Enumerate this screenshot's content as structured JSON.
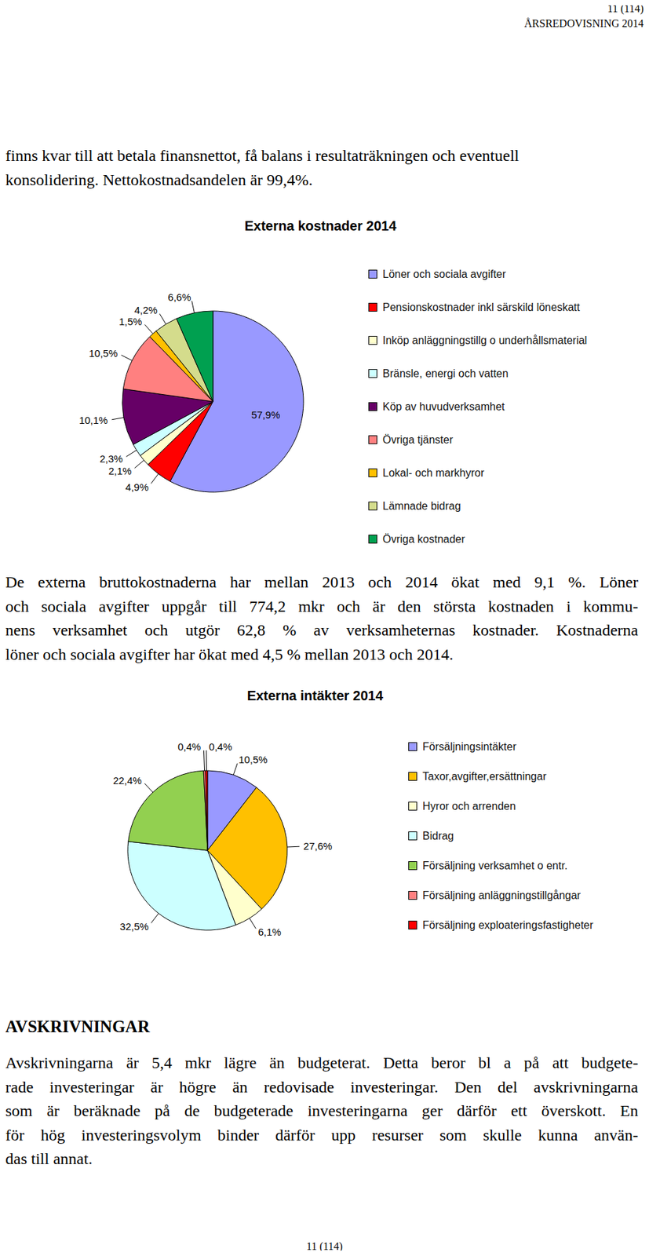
{
  "header": {
    "page": "11 (114)",
    "title": "ÅRSREDOVISNING 2014"
  },
  "intro_lines": [
    "finns kvar till att betala finansnettot, få balans i resultaträkningen och eventuell",
    "konsolidering. Nettokostnadsandelen är 99,4%."
  ],
  "chart_data": [
    {
      "type": "pie",
      "title": "Externa kostnader 2014",
      "categories": [
        "Löner och sociala avgifter",
        "Pensionskostnader inkl särskild löneskatt",
        "Inköp anläggningstillg o underhållsmaterial",
        "Bränsle, energi och vatten",
        "Köp av huvudverksamhet",
        "Övriga tjänster",
        "Lokal- och markhyror",
        "Lämnade bidrag",
        "Övriga kostnader"
      ],
      "values": [
        57.9,
        4.9,
        2.1,
        2.3,
        10.1,
        10.5,
        1.5,
        4.2,
        6.6
      ],
      "value_labels": [
        "57,9%",
        "4,9%",
        "2,1%",
        "2,3%",
        "10,1%",
        "10,5%",
        "1,5%",
        "4,2%",
        "6,6%"
      ],
      "colors": [
        "#9999ff",
        "#ff0000",
        "#ffffcc",
        "#ccffff",
        "#660066",
        "#ff8080",
        "#ffc000",
        "#d4dc8c",
        "#00a050"
      ],
      "data_labels": true,
      "legend": "right"
    },
    {
      "type": "pie",
      "title": "Externa intäkter 2014",
      "categories": [
        "Försäljningsintäkter",
        "Taxor,avgifter,ersättningar",
        "Hyror och arrenden",
        "Bidrag",
        "Försäljning verksamhet o entr.",
        "Försäljning anläggningstillgångar",
        "Försäljning exploateringsfastigheter"
      ],
      "values": [
        10.5,
        27.6,
        6.1,
        32.5,
        22.4,
        0.4,
        0.4
      ],
      "value_labels": [
        "10,5%",
        "27,6%",
        "6,1%",
        "32,5%",
        "22,4%",
        "0,4%",
        "0,4%"
      ],
      "colors": [
        "#9999ff",
        "#ffc000",
        "#ffffcc",
        "#ccffff",
        "#92d050",
        "#ff8080",
        "#ff0000"
      ],
      "data_labels": true,
      "legend": "right"
    }
  ],
  "costs_lines": [
    "De externa bruttokostnaderna har mellan 2013 och 2014 ökat med 9,1 %. Löner",
    "och sociala avgifter uppgår till 774,2 mkr och är den största kostnaden i kommu-",
    "nens verksamhet och utgör 62,8 % av verksamheternas kostnader. Kostnaderna",
    "löner och sociala avgifter har ökat med 4,5 % mellan 2013 och 2014."
  ],
  "section": {
    "heading": "AVSKRIVNINGAR",
    "lines": [
      "Avskrivningarna är 5,4 mkr lägre än budgeterat. Detta beror bl a på att budgete-",
      "rade investeringar är högre än redovisade investeringar. Den del avskrivningarna",
      "som är beräknade på de budgeterade investeringarna ger därför ett överskott. En",
      "för hög investeringsvolym binder därför upp resurser som skulle kunna använ-",
      "das till annat."
    ]
  },
  "footer": "11 (114)"
}
